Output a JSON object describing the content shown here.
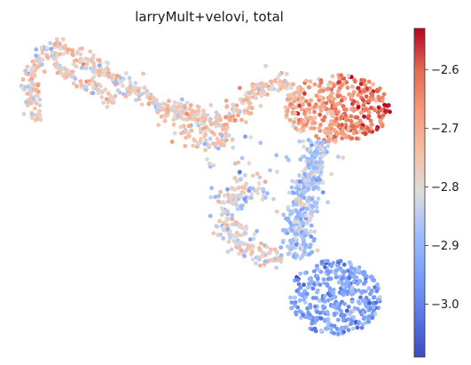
{
  "chart_data": {
    "type": "scatter",
    "title": "larryMult+velovi, total",
    "xlabel": "",
    "ylabel": "",
    "axes_visible": false,
    "colormap": "coolwarm",
    "colorbar": {
      "min": -3.09,
      "max": -2.53,
      "ticks": [
        -2.6,
        -2.7,
        -2.8,
        -2.9,
        -3.0
      ],
      "tick_labels": [
        "−2.6",
        "−2.7",
        "−2.8",
        "−2.9",
        "−3.0"
      ],
      "placement": "right"
    },
    "embedding_regions": [
      {
        "region": "upper-left arm",
        "approx_value": -2.78
      },
      {
        "region": "upper-middle band",
        "approx_value": -2.76
      },
      {
        "region": "upper-right lobe",
        "approx_value": -2.66
      },
      {
        "region": "central stem",
        "approx_value": -2.87
      },
      {
        "region": "lower-left loop",
        "approx_value": -2.8
      },
      {
        "region": "bottom lobe",
        "approx_value": -2.94
      }
    ]
  }
}
